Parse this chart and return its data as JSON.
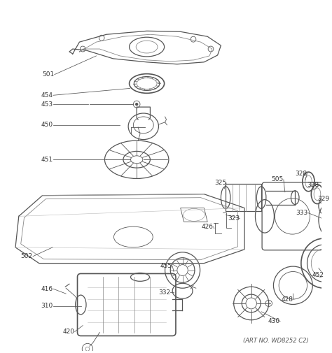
{
  "background_color": "#ffffff",
  "art_no_text": "(ART NO. WD8252 C2)",
  "fig_width": 4.74,
  "fig_height": 5.05,
  "dpi": 100
}
